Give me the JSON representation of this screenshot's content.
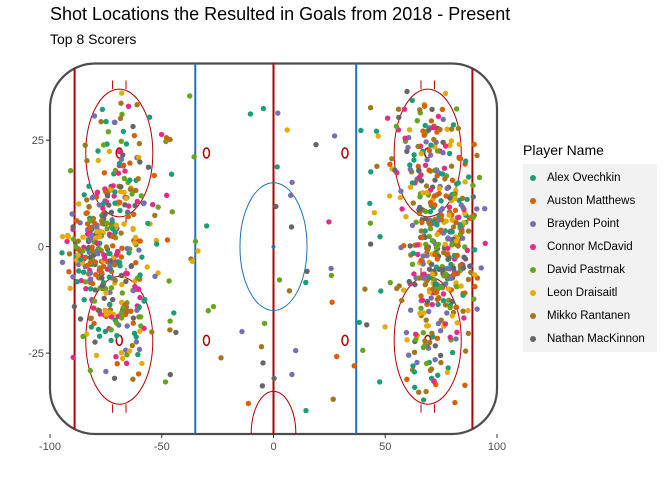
{
  "chart_data": {
    "type": "scatter",
    "title": "Shot Locations the Resulted in Goals from 2018 - Present",
    "subtitle": "Top 8 Scorers",
    "xlabel": "",
    "ylabel": "",
    "xlim": [
      -100,
      100
    ],
    "ylim": [
      -44,
      45
    ],
    "x_ticks": [
      -100,
      -50,
      0,
      50,
      100
    ],
    "y_ticks": [
      25,
      0,
      -25
    ],
    "grid": false,
    "legend_title": "Player Name",
    "legend_position": "right",
    "series": [
      {
        "name": "Alex Ovechkin",
        "color": "#1B9E77"
      },
      {
        "name": "Auston Matthews",
        "color": "#D95F02"
      },
      {
        "name": "Brayden Point",
        "color": "#7570B3"
      },
      {
        "name": "Connor McDavid",
        "color": "#E7298A"
      },
      {
        "name": "David Pastrnak",
        "color": "#66A61E"
      },
      {
        "name": "Leon Draisaitl",
        "color": "#E6AB02"
      },
      {
        "name": "Mikko Rantanen",
        "color": "#A6761D"
      },
      {
        "name": "Nathan MacKinnon",
        "color": "#666666"
      }
    ],
    "rink": {
      "board_color": "#4d4d4d",
      "red_line_color": "#b20000",
      "blue_line_color": "#2171b5",
      "crease_color": "#2b6f9e",
      "goal_lines_x": [
        -89,
        89
      ],
      "blue_lines_x": [
        -35,
        37
      ],
      "center_line_x": 0,
      "faceoff_circles": [
        [
          -69,
          22
        ],
        [
          -69,
          -22
        ],
        [
          69,
          22
        ],
        [
          69,
          -22
        ]
      ],
      "neutral_dots": [
        [
          -30,
          22
        ],
        [
          -30,
          -22
        ],
        [
          32,
          22
        ],
        [
          32,
          -22
        ]
      ]
    }
  }
}
